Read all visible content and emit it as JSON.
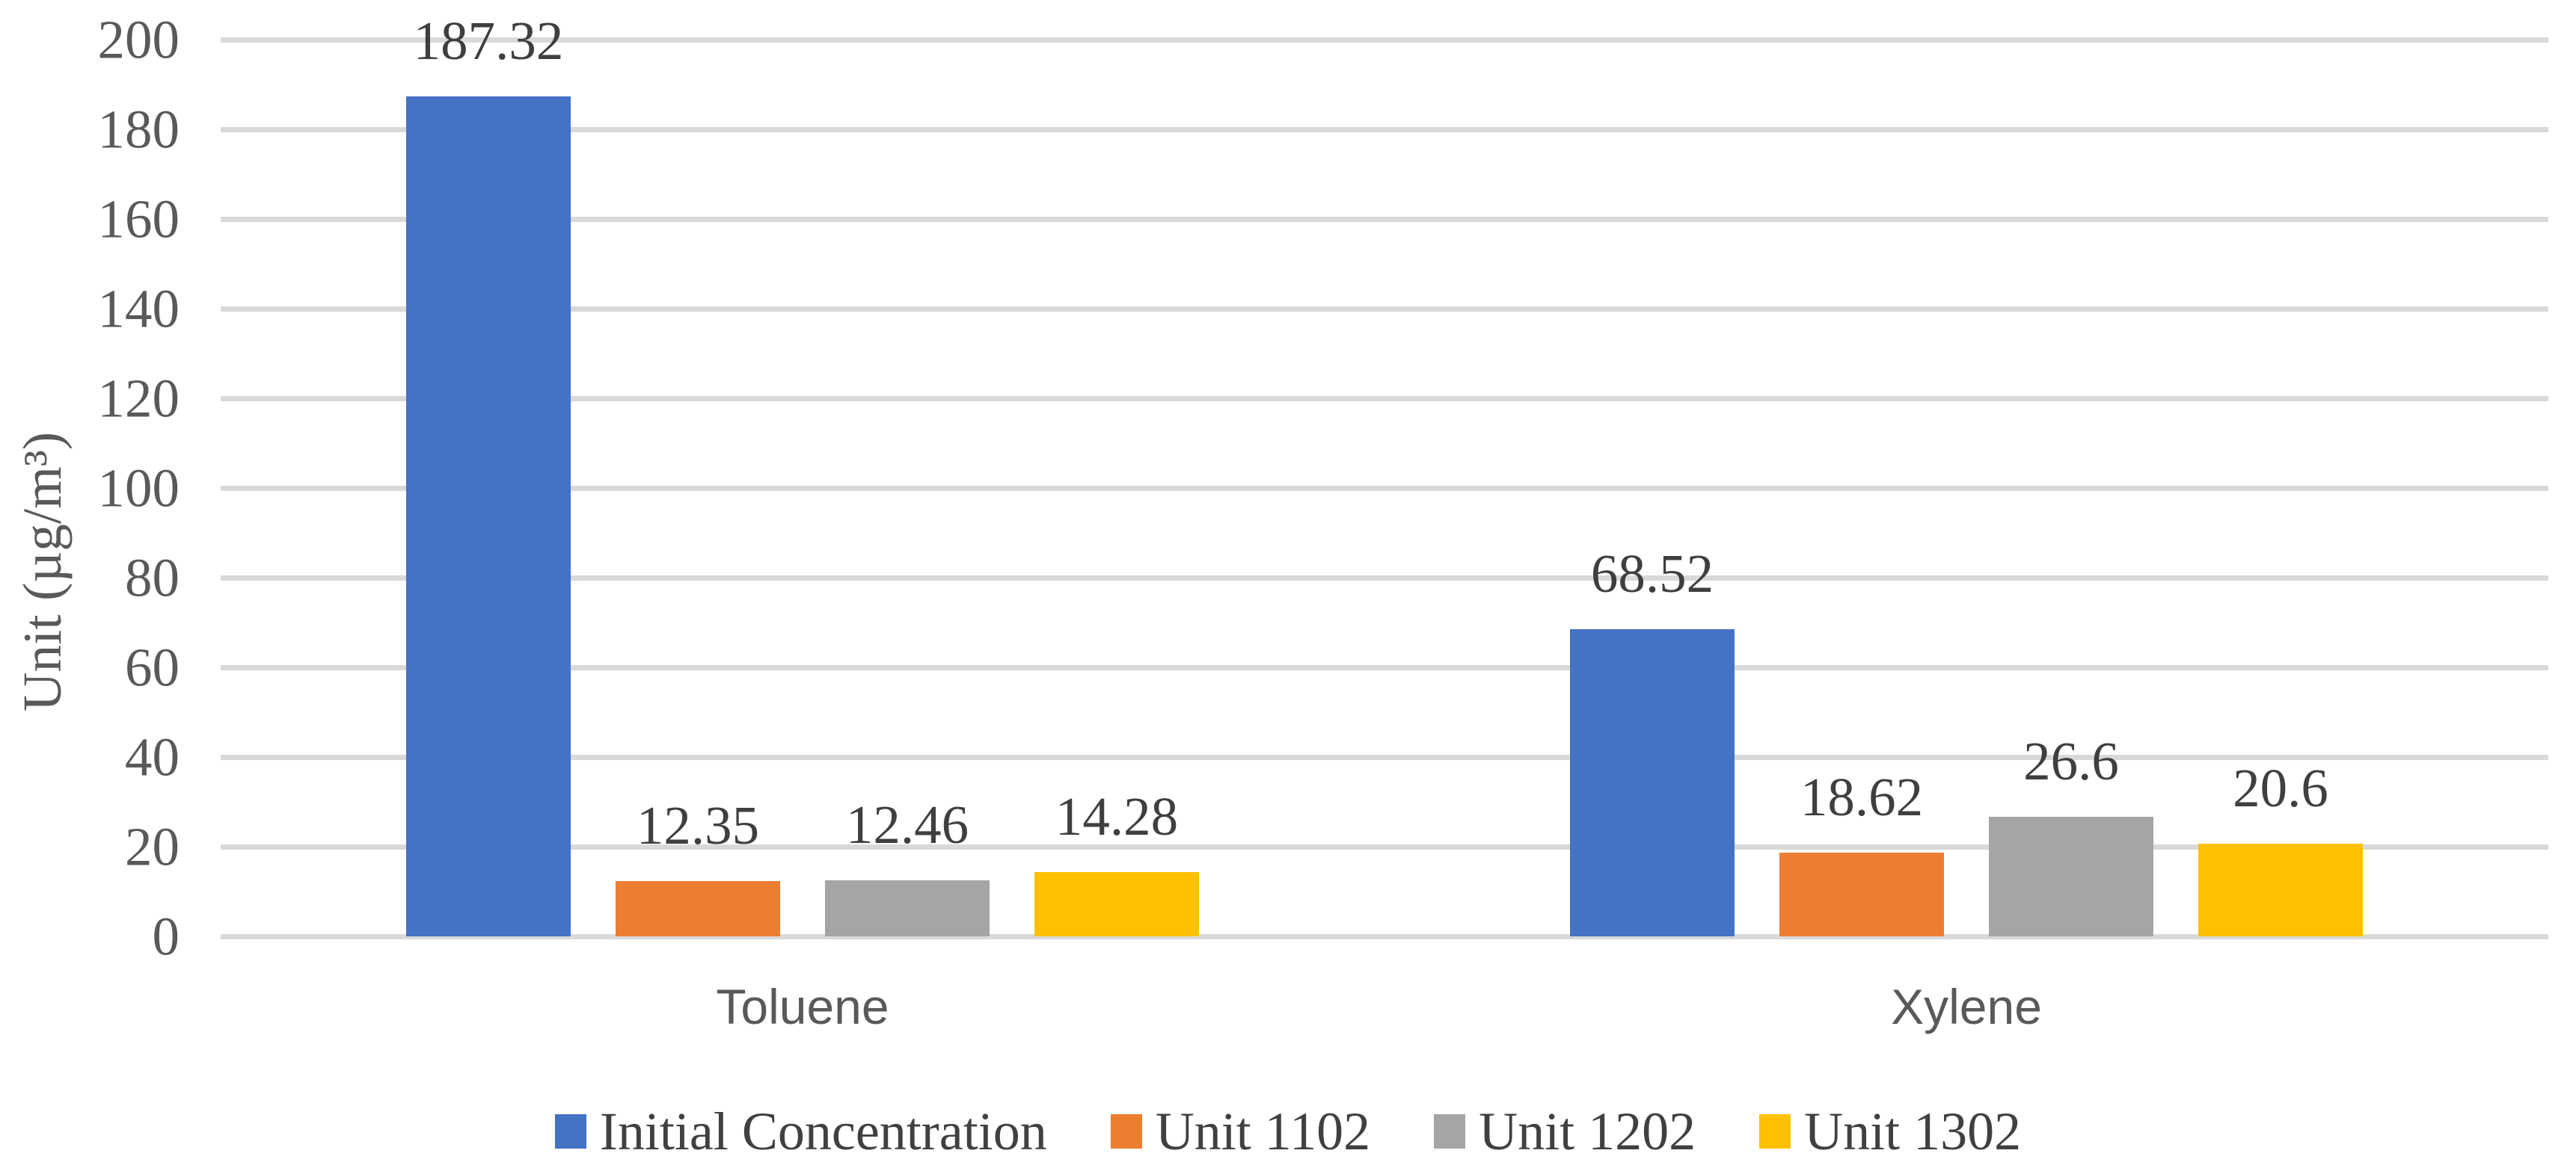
{
  "chart_data": {
    "type": "bar",
    "title": "",
    "categories": [
      "Toluene",
      "Xylene"
    ],
    "series": [
      {
        "name": "Initial Concentration",
        "color": "#4472C4",
        "values": [
          187.32,
          68.52
        ],
        "labels": [
          "187.32",
          "68.52"
        ]
      },
      {
        "name": "Unit 1102",
        "color": "#ED7D31",
        "values": [
          12.35,
          18.62
        ],
        "labels": [
          "12.35",
          "18.62"
        ]
      },
      {
        "name": "Unit 1202",
        "color": "#A5A5A5",
        "values": [
          12.46,
          26.6
        ],
        "labels": [
          "12.46",
          "26.6"
        ]
      },
      {
        "name": "Unit 1302",
        "color": "#FFC000",
        "values": [
          14.28,
          20.6
        ],
        "labels": [
          "14.28",
          "20.6"
        ]
      }
    ],
    "xlabel": "",
    "ylabel": "Unit (µg/m³)",
    "ylim": [
      0,
      200
    ],
    "yticks": [
      0,
      20,
      40,
      60,
      80,
      100,
      120,
      140,
      160,
      180,
      200
    ],
    "grid": true,
    "legend_position": "bottom",
    "style": {
      "background": "#FFFFFF",
      "gridline_color": "#D9D9D9",
      "tick_label_color": "#595959",
      "data_label_color": "#3F3F3F",
      "category_label_color": "#595959",
      "legend_label_color": "#404040"
    }
  }
}
